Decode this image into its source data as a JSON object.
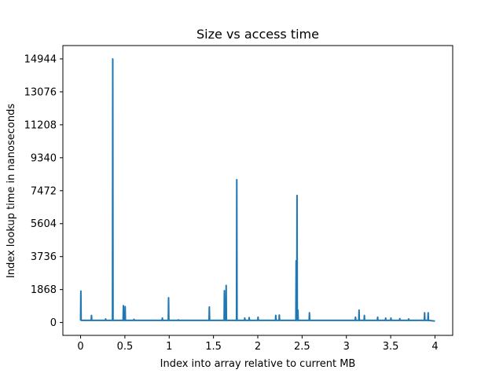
{
  "chart_data": {
    "type": "line",
    "title": "Size vs access time",
    "xlabel": "Index into array relative to current MB",
    "ylabel": "Index lookup time in nanoseconds",
    "xlim": [
      -0.2,
      4.2
    ],
    "ylim": [
      -730,
      15700
    ],
    "x_ticks": [
      0,
      0.5,
      1,
      1.5,
      2,
      2.5,
      3,
      3.5,
      4
    ],
    "x_tick_labels": [
      "0",
      "0.5",
      "1",
      "1.5",
      "2",
      "2.5",
      "3",
      "3.5",
      "4"
    ],
    "y_ticks": [
      0,
      1868,
      3736,
      5604,
      7472,
      9340,
      11208,
      13076,
      14944
    ],
    "y_tick_labels": [
      "0",
      "1868",
      "3736",
      "5604",
      "7472",
      "9340",
      "11208",
      "13076",
      "14944"
    ],
    "grid": false,
    "color": "#1f77b4",
    "baseline": 120,
    "x": [
      0.0,
      0.003,
      0.006,
      0.12,
      0.123,
      0.126,
      0.28,
      0.283,
      0.286,
      0.36,
      0.363,
      0.366,
      0.48,
      0.483,
      0.486,
      0.5,
      0.503,
      0.506,
      0.6,
      0.603,
      0.606,
      0.92,
      0.923,
      0.926,
      0.99,
      0.993,
      0.996,
      1.1,
      1.103,
      1.106,
      1.45,
      1.453,
      1.456,
      1.62,
      1.623,
      1.626,
      1.64,
      1.643,
      1.646,
      1.76,
      1.763,
      1.766,
      1.85,
      1.853,
      1.856,
      1.9,
      1.903,
      1.906,
      2.0,
      2.003,
      2.006,
      2.2,
      2.203,
      2.206,
      2.24,
      2.243,
      2.246,
      2.43,
      2.433,
      2.436,
      2.44,
      2.443,
      2.446,
      2.45,
      2.453,
      2.456,
      2.58,
      2.583,
      2.586,
      3.1,
      3.103,
      3.106,
      3.14,
      3.143,
      3.146,
      3.2,
      3.203,
      3.206,
      3.35,
      3.353,
      3.356,
      3.44,
      3.443,
      3.446,
      3.5,
      3.503,
      3.506,
      3.6,
      3.603,
      3.606,
      3.7,
      3.703,
      3.706,
      3.88,
      3.883,
      3.886,
      3.92,
      3.923,
      3.926,
      4.0
    ],
    "y": [
      120,
      1780,
      120,
      120,
      400,
      120,
      120,
      200,
      120,
      120,
      14944,
      120,
      120,
      950,
      120,
      120,
      900,
      120,
      120,
      180,
      120,
      120,
      250,
      120,
      120,
      1400,
      120,
      120,
      150,
      120,
      120,
      880,
      120,
      120,
      1800,
      120,
      120,
      2100,
      120,
      120,
      8100,
      120,
      120,
      250,
      120,
      120,
      280,
      120,
      120,
      300,
      120,
      120,
      400,
      120,
      120,
      420,
      120,
      120,
      3500,
      120,
      120,
      7200,
      120,
      120,
      700,
      120,
      120,
      550,
      120,
      120,
      300,
      120,
      120,
      700,
      120,
      120,
      400,
      120,
      120,
      300,
      120,
      120,
      250,
      120,
      120,
      250,
      120,
      120,
      220,
      120,
      120,
      200,
      120,
      120,
      550,
      120,
      120,
      550,
      120,
      80
    ]
  }
}
